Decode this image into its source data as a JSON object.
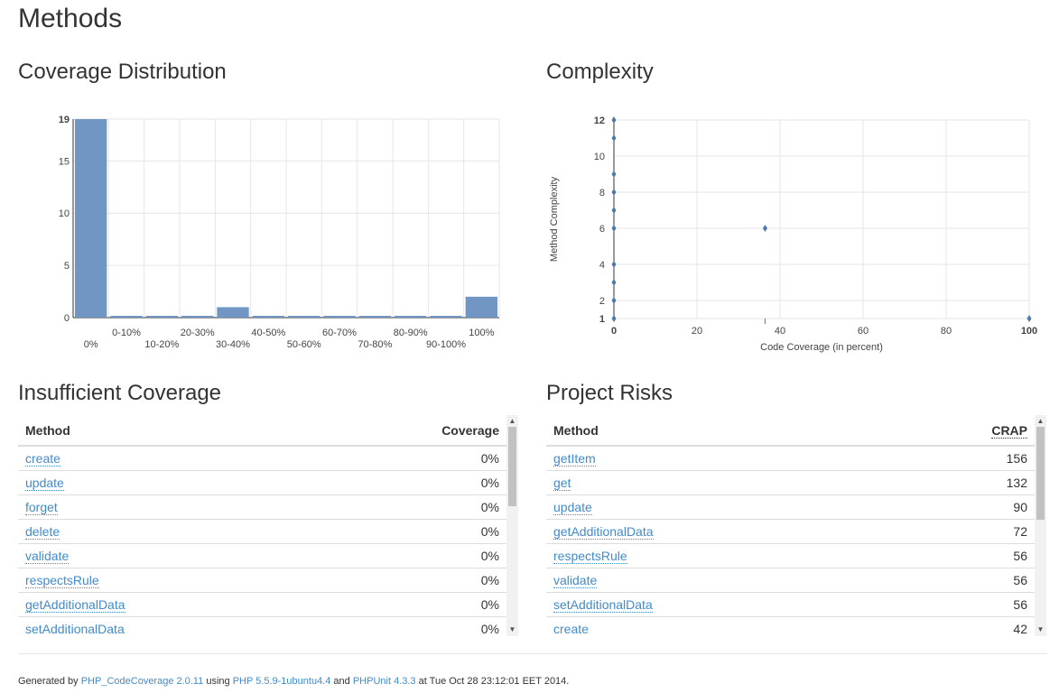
{
  "page": {
    "title": "Methods"
  },
  "sections": {
    "coverage": "Coverage Distribution",
    "complexity": "Complexity",
    "insufficient": "Insufficient Coverage",
    "risks": "Project Risks"
  },
  "chart_data": [
    {
      "type": "bar",
      "title": "",
      "categories": [
        "0%",
        "0-10%",
        "10-20%",
        "20-30%",
        "30-40%",
        "40-50%",
        "50-60%",
        "60-70%",
        "70-80%",
        "80-90%",
        "90-100%",
        "100%"
      ],
      "values": [
        19,
        0,
        0,
        0,
        1,
        0,
        0,
        0,
        0,
        0,
        0,
        2
      ],
      "yticks": [
        0,
        5,
        10,
        15,
        19
      ],
      "ylim": [
        0,
        19
      ],
      "grid": true,
      "colors": {
        "bar": "#7196c3"
      }
    },
    {
      "type": "scatter",
      "title": "",
      "xlabel": "Code Coverage (in percent)",
      "ylabel": "Method Complexity",
      "xlim": [
        0,
        100
      ],
      "ylim": [
        1,
        12
      ],
      "xticks": [
        0,
        20,
        40,
        60,
        80,
        100
      ],
      "yticks": [
        1,
        2,
        4,
        6,
        8,
        10,
        12
      ],
      "grid": true,
      "points": [
        {
          "x": 0,
          "y": 12
        },
        {
          "x": 0,
          "y": 11
        },
        {
          "x": 0,
          "y": 9
        },
        {
          "x": 0,
          "y": 8
        },
        {
          "x": 0,
          "y": 7
        },
        {
          "x": 0,
          "y": 6
        },
        {
          "x": 0,
          "y": 4
        },
        {
          "x": 0,
          "y": 3
        },
        {
          "x": 0,
          "y": 2
        },
        {
          "x": 0,
          "y": 1
        },
        {
          "x": 36.4,
          "y": 6
        },
        {
          "x": 100,
          "y": 1
        }
      ],
      "colors": {
        "point": "#4d79a9"
      }
    }
  ],
  "insufficient": {
    "col_method": "Method",
    "col_coverage": "Coverage",
    "rows": [
      {
        "method": "create",
        "value": "0%"
      },
      {
        "method": "update",
        "value": "0%"
      },
      {
        "method": "forget",
        "value": "0%"
      },
      {
        "method": "delete",
        "value": "0%"
      },
      {
        "method": "validate",
        "value": "0%"
      },
      {
        "method": "respectsRule",
        "value": "0%"
      },
      {
        "method": "getAdditionalData",
        "value": "0%"
      },
      {
        "method": "setAdditionalData",
        "value": "0%"
      }
    ]
  },
  "risks": {
    "col_method": "Method",
    "col_crap": "CRAP",
    "rows": [
      {
        "method": "getItem",
        "value": "156"
      },
      {
        "method": "get",
        "value": "132"
      },
      {
        "method": "update",
        "value": "90"
      },
      {
        "method": "getAdditionalData",
        "value": "72"
      },
      {
        "method": "respectsRule",
        "value": "56"
      },
      {
        "method": "validate",
        "value": "56"
      },
      {
        "method": "setAdditionalData",
        "value": "56"
      },
      {
        "method": "create",
        "value": "42"
      }
    ]
  },
  "footer": {
    "prefix": "Generated by ",
    "tool": "PHP_CodeCoverage 2.0.11",
    "using": " using ",
    "php": "PHP 5.5.9-1ubuntu4.4",
    "and": " and ",
    "phpunit": "PHPUnit 4.3.3",
    "suffix": " at Tue Oct 28 23:12:01 EET 2014."
  }
}
